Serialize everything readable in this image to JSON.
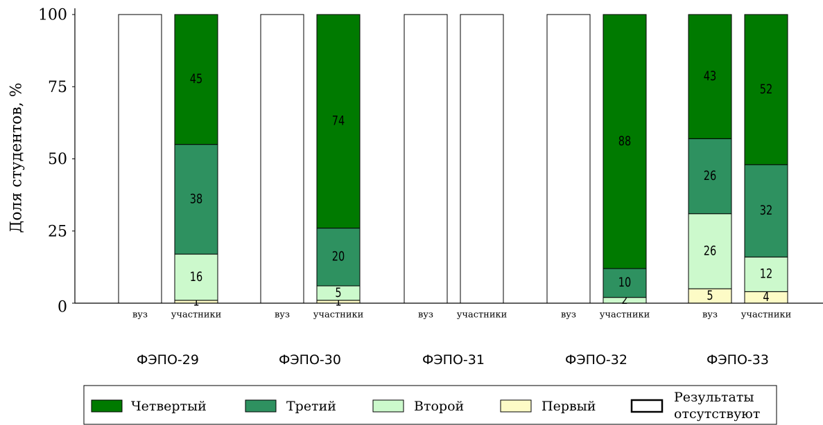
{
  "chart_data": {
    "type": "bar",
    "stacked": true,
    "ylabel": "Доля студентов, %",
    "ylim": [
      0,
      100
    ],
    "yticks": [
      0,
      25,
      50,
      75,
      100
    ],
    "grid": false,
    "legend_position": "bottom",
    "colors": {
      "fourth": "#007a00",
      "third": "#2e9160",
      "second": "#ccf9cc",
      "first": "#fdfbc6",
      "missing": "#ffffff",
      "edge": "#000000"
    },
    "legend": [
      {
        "key": "fourth",
        "label": "Четвертый"
      },
      {
        "key": "third",
        "label": "Третий"
      },
      {
        "key": "second",
        "label": "Второй"
      },
      {
        "key": "first",
        "label": "Первый"
      },
      {
        "key": "missing",
        "label": "Результаты отсутствуют"
      }
    ],
    "groups": [
      {
        "name": "ФЭПО-29",
        "bars": [
          {
            "label": "вуз",
            "missing": true
          },
          {
            "label": "участники",
            "missing": false,
            "first": 1,
            "second": 16,
            "third": 38,
            "fourth": 45
          }
        ]
      },
      {
        "name": "ФЭПО-30",
        "bars": [
          {
            "label": "вуз",
            "missing": true
          },
          {
            "label": "участники",
            "missing": false,
            "first": 1,
            "second": 5,
            "third": 20,
            "fourth": 74
          }
        ]
      },
      {
        "name": "ФЭПО-31",
        "bars": [
          {
            "label": "вуз",
            "missing": true
          },
          {
            "label": "участники",
            "missing": true
          }
        ]
      },
      {
        "name": "ФЭПО-32",
        "bars": [
          {
            "label": "вуз",
            "missing": true
          },
          {
            "label": "участники",
            "missing": false,
            "first": 0,
            "second": 2,
            "third": 10,
            "fourth": 88
          }
        ]
      },
      {
        "name": "ФЭПО-33",
        "bars": [
          {
            "label": "вуз",
            "missing": false,
            "first": 5,
            "second": 26,
            "third": 26,
            "fourth": 43
          },
          {
            "label": "участники",
            "missing": false,
            "first": 4,
            "second": 12,
            "third": 32,
            "fourth": 52
          }
        ]
      }
    ]
  }
}
